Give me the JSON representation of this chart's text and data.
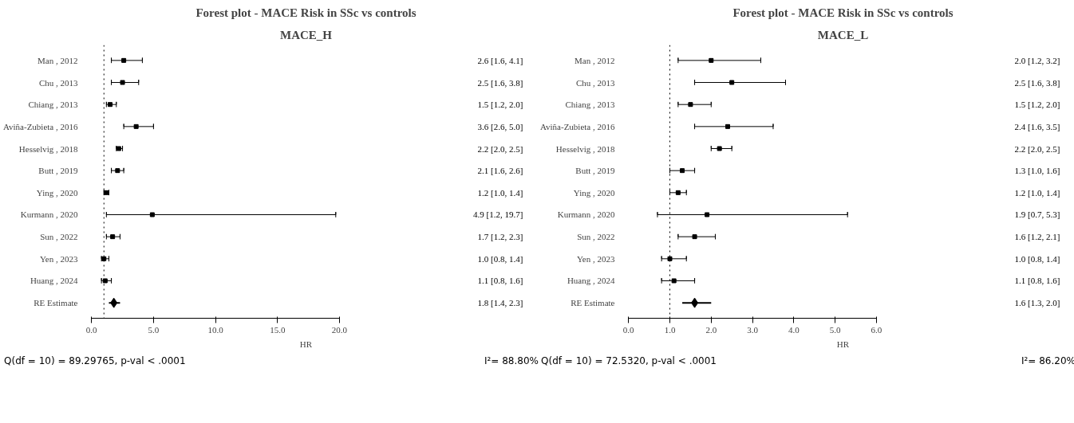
{
  "chart_data": [
    {
      "type": "scatter",
      "orientation": "horizontal",
      "title": "Forest plot - MACE Risk in SSc vs controls",
      "subtitle": "MACE_H",
      "xlabel": "HR",
      "categories": [
        "Man , 2012",
        "Chu , 2013",
        "Chiang , 2013",
        "Aviña-Zubieta , 2016",
        "Hesselvig , 2018",
        "Butt , 2019",
        "Ying , 2020",
        "Kurmann , 2020",
        "Sun , 2022",
        "Yen , 2023",
        "Huang , 2024",
        "RE Estimate"
      ],
      "series": [
        {
          "color": "#000000",
          "marker": "square",
          "values": [
            2.6,
            2.5,
            1.5,
            3.6,
            2.2,
            2.1,
            1.2,
            4.9,
            1.7,
            1.0,
            1.1,
            null
          ],
          "errors": [
            [
              1.6,
              4.1
            ],
            [
              1.6,
              3.8
            ],
            [
              1.2,
              2.0
            ],
            [
              2.6,
              5.0
            ],
            [
              2.0,
              2.5
            ],
            [
              1.6,
              2.6
            ],
            [
              1.0,
              1.4
            ],
            [
              1.2,
              19.7
            ],
            [
              1.2,
              2.3
            ],
            [
              0.8,
              1.4
            ],
            [
              0.8,
              1.6
            ],
            null
          ]
        },
        {
          "color": "#000000",
          "marker": "diamond",
          "values": [
            null,
            null,
            null,
            null,
            null,
            null,
            null,
            null,
            null,
            null,
            null,
            1.8
          ],
          "errors": [
            null,
            null,
            null,
            null,
            null,
            null,
            null,
            null,
            null,
            null,
            null,
            [
              1.4,
              2.3
            ]
          ]
        }
      ],
      "value_labels": [
        "2.6 [1.6, 4.1]",
        "2.5 [1.6, 3.8]",
        "1.5 [1.2, 2.0]",
        "3.6 [2.6, 5.0]",
        "2.2 [2.0, 2.5]",
        "2.1 [1.6, 2.6]",
        "1.2 [1.0, 1.4]",
        "4.9 [1.2, 19.7]",
        "1.7 [1.2, 2.3]",
        "1.0 [0.8, 1.4]",
        "1.1 [0.8, 1.6]",
        "1.8 [1.4, 2.3]"
      ],
      "xlim": [
        0,
        20
      ],
      "xticks": [
        {
          "value": 0,
          "label": "0.0"
        },
        {
          "value": 5,
          "label": "5.0"
        },
        {
          "value": 10,
          "label": "10.0"
        },
        {
          "value": 15,
          "label": "15.0"
        },
        {
          "value": 20,
          "label": "20.0"
        }
      ],
      "ref_lines": [
        {
          "axis": "x",
          "value": 1,
          "label": null,
          "line_style": "dotted"
        }
      ],
      "grid": false,
      "annotations": [
        "Q(df = 10) = 89.29765,  p-val < .0001",
        "I²= 88.80%"
      ]
    },
    {
      "type": "scatter",
      "orientation": "horizontal",
      "title": "Forest plot - MACE Risk in SSc vs controls",
      "subtitle": "MACE_L",
      "xlabel": "HR",
      "categories": [
        "Man , 2012",
        "Chu , 2013",
        "Chiang , 2013",
        "Aviña-Zubieta , 2016",
        "Hesselvig , 2018",
        "Butt , 2019",
        "Ying , 2020",
        "Kurmann , 2020",
        "Sun , 2022",
        "Yen , 2023",
        "Huang , 2024",
        "RE Estimate"
      ],
      "series": [
        {
          "color": "#000000",
          "marker": "square",
          "values": [
            2.0,
            2.5,
            1.5,
            2.4,
            2.2,
            1.3,
            1.2,
            1.9,
            1.6,
            1.0,
            1.1,
            null
          ],
          "errors": [
            [
              1.2,
              3.2
            ],
            [
              1.6,
              3.8
            ],
            [
              1.2,
              2.0
            ],
            [
              1.6,
              3.5
            ],
            [
              2.0,
              2.5
            ],
            [
              1.0,
              1.6
            ],
            [
              1.0,
              1.4
            ],
            [
              0.7,
              5.3
            ],
            [
              1.2,
              2.1
            ],
            [
              0.8,
              1.4
            ],
            [
              0.8,
              1.6
            ],
            null
          ]
        },
        {
          "color": "#000000",
          "marker": "diamond",
          "values": [
            null,
            null,
            null,
            null,
            null,
            null,
            null,
            null,
            null,
            null,
            null,
            1.6
          ],
          "errors": [
            null,
            null,
            null,
            null,
            null,
            null,
            null,
            null,
            null,
            null,
            null,
            [
              1.3,
              2.0
            ]
          ]
        }
      ],
      "value_labels": [
        "2.0 [1.2, 3.2]",
        "2.5 [1.6, 3.8]",
        "1.5 [1.2, 2.0]",
        "2.4 [1.6, 3.5]",
        "2.2 [2.0, 2.5]",
        "1.3 [1.0, 1.6]",
        "1.2 [1.0, 1.4]",
        "1.9 [0.7, 5.3]",
        "1.6 [1.2, 2.1]",
        "1.0 [0.8, 1.4]",
        "1.1 [0.8, 1.6]",
        "1.6 [1.3, 2.0]"
      ],
      "xlim": [
        0,
        6
      ],
      "xticks": [
        {
          "value": 0,
          "label": "0.0"
        },
        {
          "value": 1,
          "label": "1.0"
        },
        {
          "value": 2,
          "label": "2.0"
        },
        {
          "value": 3,
          "label": "3.0"
        },
        {
          "value": 4,
          "label": "4.0"
        },
        {
          "value": 5,
          "label": "5.0"
        },
        {
          "value": 6,
          "label": "6.0"
        }
      ],
      "ref_lines": [
        {
          "axis": "x",
          "value": 1,
          "label": null,
          "line_style": "dotted"
        }
      ],
      "grid": false,
      "annotations": [
        "Q(df = 10) = 72.5320,  p-val < .0001",
        "I²= 86.20%"
      ]
    }
  ]
}
